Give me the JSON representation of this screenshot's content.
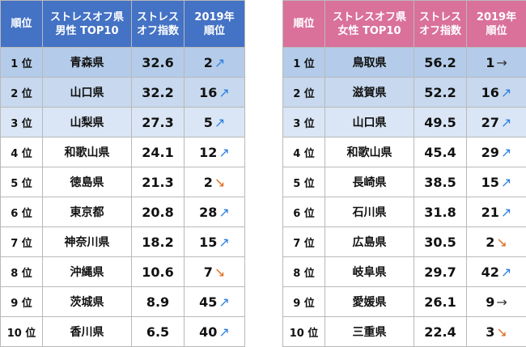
{
  "men": {
    "headers": {
      "rank": "順位",
      "pref_line1": "ストレスオフ県",
      "pref_line2": "男性 TOP10",
      "index_line1": "ストレス",
      "index_line2": "オフ指数",
      "prev_line1": "2019年",
      "prev_line2": "順位"
    },
    "rows": [
      {
        "rank": "1 位",
        "pref": "青森県",
        "index": "32.6",
        "prev": "2",
        "trend": "↗"
      },
      {
        "rank": "2 位",
        "pref": "山口県",
        "index": "32.2",
        "prev": "16",
        "trend": "↗"
      },
      {
        "rank": "3 位",
        "pref": "山梨県",
        "index": "27.3",
        "prev": "5",
        "trend": "↗"
      },
      {
        "rank": "4 位",
        "pref": "和歌山県",
        "index": "24.1",
        "prev": "12",
        "trend": "↗"
      },
      {
        "rank": "5 位",
        "pref": "徳島県",
        "index": "21.3",
        "prev": "2",
        "trend": "↘"
      },
      {
        "rank": "6 位",
        "pref": "東京都",
        "index": "20.8",
        "prev": "28",
        "trend": "↗"
      },
      {
        "rank": "7 位",
        "pref": "神奈川県",
        "index": "18.2",
        "prev": "15",
        "trend": "↗"
      },
      {
        "rank": "8 位",
        "pref": "沖縄県",
        "index": "10.6",
        "prev": "7",
        "trend": "↘"
      },
      {
        "rank": "9 位",
        "pref": "茨城県",
        "index": "8.9",
        "prev": "45",
        "trend": "↗"
      },
      {
        "rank": "10 位",
        "pref": "香川県",
        "index": "6.5",
        "prev": "40",
        "trend": "↗"
      }
    ]
  },
  "women": {
    "headers": {
      "rank": "順位",
      "pref_line1": "ストレスオフ県",
      "pref_line2": "女性 TOP10",
      "index_line1": "ストレス",
      "index_line2": "オフ指数",
      "prev_line1": "2019年",
      "prev_line2": "順位"
    },
    "rows": [
      {
        "rank": "1 位",
        "pref": "鳥取県",
        "index": "56.2",
        "prev": "1",
        "trend": "→"
      },
      {
        "rank": "2 位",
        "pref": "滋賀県",
        "index": "52.2",
        "prev": "16",
        "trend": "↗"
      },
      {
        "rank": "3 位",
        "pref": "山口県",
        "index": "49.5",
        "prev": "27",
        "trend": "↗"
      },
      {
        "rank": "4 位",
        "pref": "和歌山県",
        "index": "45.4",
        "prev": "29",
        "trend": "↗"
      },
      {
        "rank": "5 位",
        "pref": "長崎県",
        "index": "38.5",
        "prev": "15",
        "trend": "↗"
      },
      {
        "rank": "6 位",
        "pref": "石川県",
        "index": "31.8",
        "prev": "21",
        "trend": "↗"
      },
      {
        "rank": "7 位",
        "pref": "広島県",
        "index": "30.5",
        "prev": "2",
        "trend": "↘"
      },
      {
        "rank": "8 位",
        "pref": "岐阜県",
        "index": "29.7",
        "prev": "42",
        "trend": "↗"
      },
      {
        "rank": "9 位",
        "pref": "愛媛県",
        "index": "26.1",
        "prev": "9",
        "trend": "→"
      },
      {
        "rank": "10 位",
        "pref": "三重県",
        "index": "22.4",
        "prev": "3",
        "trend": "↘"
      }
    ]
  },
  "colors": {
    "men_header": "#4472c4",
    "women_header": "#d9719b",
    "arrow_up": "#2a7de1",
    "arrow_down": "#e06a1b",
    "arrow_flat": "#333333"
  }
}
